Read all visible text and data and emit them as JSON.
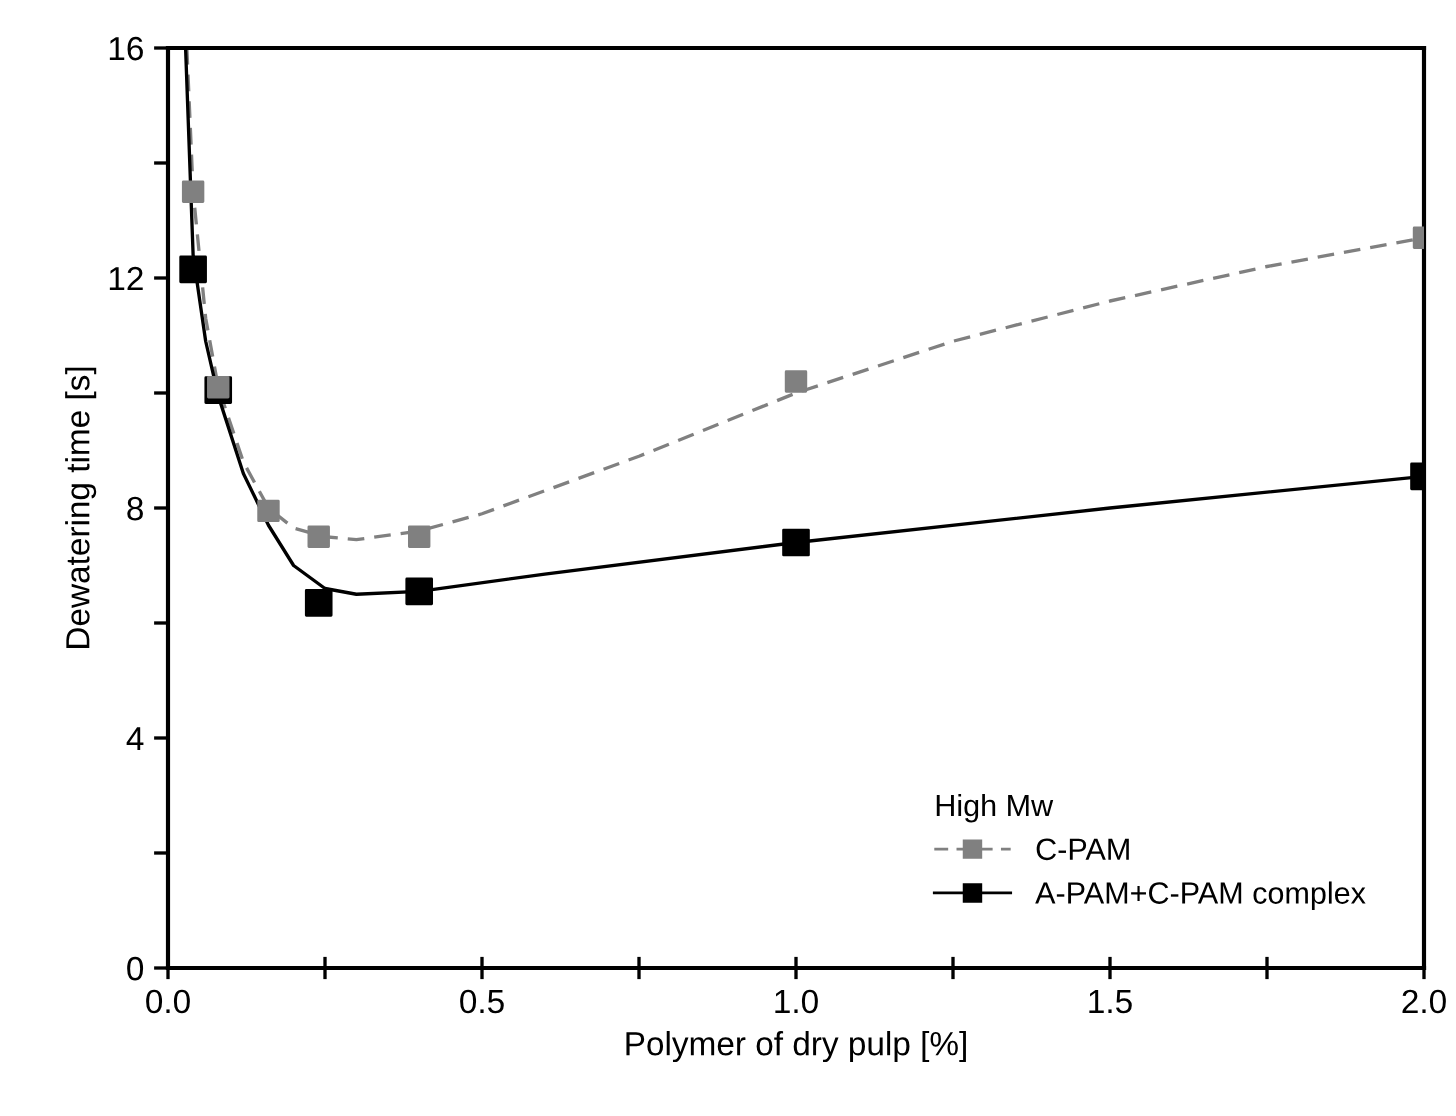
{
  "chart_data": {
    "type": "scatter",
    "xlabel": "Polymer of dry pulp [%]",
    "ylabel": "Dewatering time [s]",
    "legend_title": "High Mw",
    "xlim": [
      0,
      2
    ],
    "ylim": [
      0,
      16
    ],
    "xticks": [
      {
        "value": 0,
        "label": "0.0"
      },
      {
        "value": 0.25,
        "label": null
      },
      {
        "value": 0.5,
        "label": "0.5"
      },
      {
        "value": 0.75,
        "label": null
      },
      {
        "value": 1,
        "label": "1.0"
      },
      {
        "value": 1.25,
        "label": null
      },
      {
        "value": 1.5,
        "label": "1.5"
      },
      {
        "value": 1.75,
        "label": null
      },
      {
        "value": 2,
        "label": "2.0"
      }
    ],
    "yticks": [
      0,
      {
        "value": 2,
        "label": null
      },
      4,
      {
        "value": 6,
        "label": null
      },
      8,
      {
        "value": 10,
        "label": null
      },
      12,
      {
        "value": 14,
        "label": null
      },
      16
    ],
    "grid": false,
    "legend": "bottom right",
    "series": [
      {
        "name": "C-PAM",
        "color": "#808080",
        "marker": "square",
        "line_style": "dashed",
        "x": [
          0.04,
          0.08,
          0.16,
          0.24,
          0.4,
          1.0,
          2.0
        ],
        "values": [
          13.5,
          10.1,
          7.95,
          7.5,
          7.5,
          10.2,
          12.7
        ]
      },
      {
        "name": "A-PAM+C-PAM complex",
        "color": "#000000",
        "marker": "square",
        "line_style": "solid",
        "x": [
          0.04,
          0.08,
          0.16,
          0.24,
          0.4,
          1.0,
          2.0
        ],
        "values": [
          12.15,
          10.05,
          null,
          6.35,
          6.55,
          7.4,
          8.55
        ]
      },
      {
        "type": "line",
        "color": "#808080",
        "line_style": "dashed",
        "x": [
          0.03,
          0.04,
          0.06,
          0.08,
          0.12,
          0.16,
          0.2,
          0.25,
          0.3,
          0.4,
          0.5,
          0.75,
          1.0,
          1.25,
          1.5,
          1.75,
          2.0
        ],
        "values": [
          16,
          13.5,
          11.3,
          10.1,
          8.8,
          8.0,
          7.65,
          7.5,
          7.45,
          7.6,
          7.9,
          8.9,
          10.0,
          10.9,
          11.6,
          12.2,
          12.7
        ]
      },
      {
        "type": "line",
        "color": "#000000",
        "line_style": "solid",
        "x": [
          0.028,
          0.04,
          0.06,
          0.08,
          0.12,
          0.16,
          0.2,
          0.25,
          0.3,
          0.4,
          0.6,
          1.0,
          1.5,
          2.0
        ],
        "values": [
          16,
          12.4,
          10.9,
          9.95,
          8.6,
          7.7,
          7.0,
          6.6,
          6.5,
          6.55,
          6.85,
          7.4,
          8.0,
          8.55
        ]
      }
    ]
  }
}
